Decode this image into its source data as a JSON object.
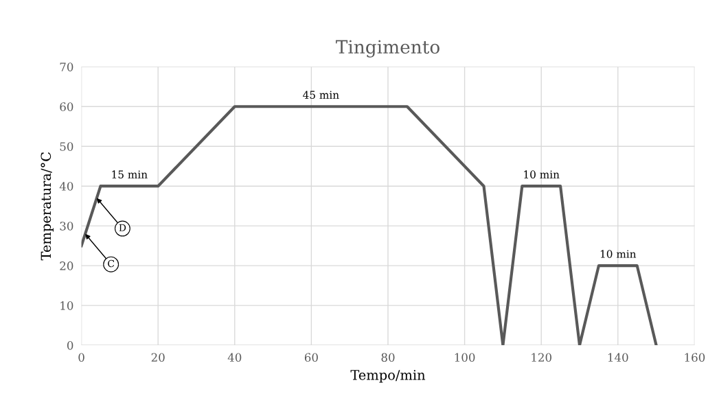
{
  "chart_data": {
    "type": "line",
    "title": "Tingimento",
    "xlabel": "Tempo/min",
    "ylabel": "Temperatura/°C",
    "x": [
      0,
      5,
      20,
      40,
      85,
      105,
      110,
      115,
      125,
      130,
      135,
      145,
      150
    ],
    "series": [
      {
        "color": "#595959",
        "values": [
          25,
          40,
          40,
          60,
          60,
          40,
          0,
          40,
          40,
          0,
          20,
          20,
          0
        ]
      }
    ],
    "xlim": [
      0,
      160
    ],
    "xticks": [
      0,
      20,
      40,
      60,
      80,
      100,
      120,
      140,
      160
    ],
    "ylim": [
      0,
      70
    ],
    "yticks": [
      0,
      10,
      20,
      30,
      40,
      50,
      60,
      70
    ],
    "grid": true,
    "marker": "none",
    "line_style": "solid",
    "annotations": [
      {
        "text": "15 min",
        "x": 12.5,
        "y": 40
      },
      {
        "text": "45 min",
        "x": 62.5,
        "y": 60
      },
      {
        "text": "10 min",
        "x": 120,
        "y": 40
      },
      {
        "text": "10 min",
        "x": 140,
        "y": 20
      },
      {
        "text": "D",
        "x": 4,
        "y": 37
      },
      {
        "text": "C",
        "x": 1,
        "y": 28
      }
    ]
  }
}
